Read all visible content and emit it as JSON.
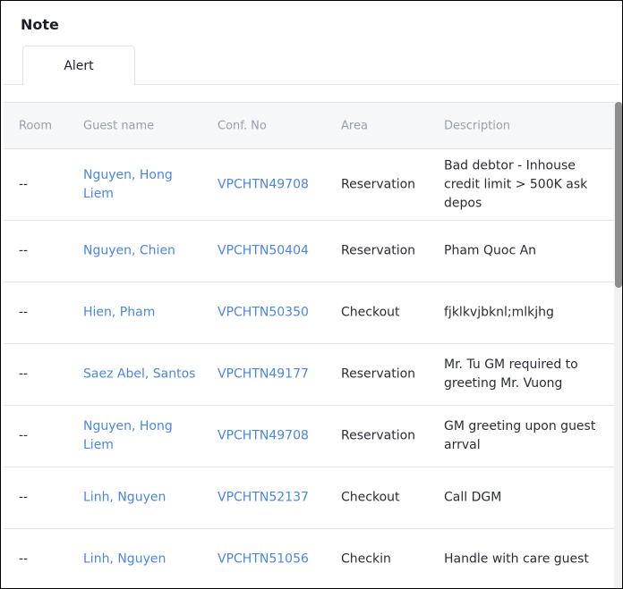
{
  "title": "Note",
  "tabs": [
    {
      "label": "Alert",
      "active": true
    }
  ],
  "columns": [
    "Room",
    "Guest name",
    "Conf. No",
    "Area",
    "Description"
  ],
  "rows": [
    {
      "room": "--",
      "guest": "Nguyen, Hong Liem",
      "conf": "VPCHTN49708",
      "area": "Reservation",
      "desc": "Bad debtor - Inhouse credit limit > 500K ask depos"
    },
    {
      "room": "--",
      "guest": "Nguyen, Chien",
      "conf": "VPCHTN50404",
      "area": "Reservation",
      "desc": "Pham Quoc An"
    },
    {
      "room": "--",
      "guest": "Hien, Pham",
      "conf": "VPCHTN50350",
      "area": "Checkout",
      "desc": "fjklkvjbknl;mlkjhg"
    },
    {
      "room": "--",
      "guest": "Saez Abel, Santos",
      "conf": "VPCHTN49177",
      "area": "Reservation",
      "desc": "Mr. Tu GM required to greeting Mr. Vuong"
    },
    {
      "room": "--",
      "guest": "Nguyen, Hong Liem",
      "conf": "VPCHTN49708",
      "area": "Reservation",
      "desc": "GM greeting upon guest arrval"
    },
    {
      "room": "--",
      "guest": "Linh, Nguyen",
      "conf": "VPCHTN52137",
      "area": "Checkout",
      "desc": "Call DGM"
    },
    {
      "room": "--",
      "guest": "Linh, Nguyen",
      "conf": "VPCHTN51056",
      "area": "Checkin",
      "desc": "Handle with care guest"
    }
  ],
  "colors": {
    "link": "#4a86e8",
    "header_bg": "#f6f7f9"
  }
}
